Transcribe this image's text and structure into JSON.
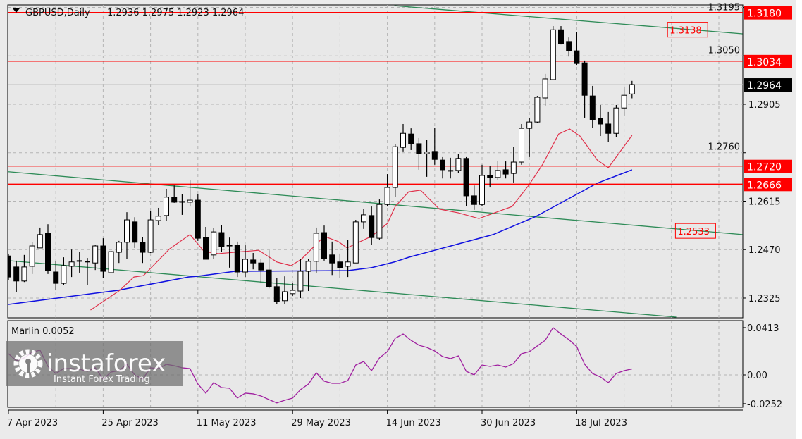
{
  "header": {
    "symbol_timeframe": "GBPUSD,Daily",
    "ohlc": "1.2936 1.2975 1.2923 1.2964"
  },
  "indicator": {
    "label": "Marlin 0.0052"
  },
  "logo": {
    "brand": "instaforex",
    "tagline": "Instant Forex Trading"
  },
  "colors": {
    "background": "#e8e8e8",
    "grid": "#b4b4b4",
    "level_line": "#ff0000",
    "trend_line": "#2e8b57",
    "ma_fast": "#e0304a",
    "ma_slow": "#1010e0",
    "marlin": "#a020a0",
    "bull_body": "#ffffff",
    "bear_body": "#000000",
    "current_price": "#000000"
  },
  "chart_data": {
    "type": "candlestick",
    "price_axis": {
      "ticks": [
        "1.3195",
        "1.3050",
        "1.2905",
        "1.2760",
        "1.2615",
        "1.2470",
        "1.2325"
      ],
      "range": [
        1.227,
        1.321
      ]
    },
    "date_labels": [
      {
        "index": 0,
        "text": "7 Apr 2023"
      },
      {
        "index": 12,
        "text": "25 Apr 2023"
      },
      {
        "index": 24,
        "text": "11 May 2023"
      },
      {
        "index": 36,
        "text": "29 May 2023"
      },
      {
        "index": 48,
        "text": "14 Jun 2023"
      },
      {
        "index": 60,
        "text": "30 Jun 2023"
      },
      {
        "index": 72,
        "text": "18 Jul 2023"
      }
    ],
    "candles": [
      [
        1.2451,
        1.2458,
        1.2378,
        1.2388
      ],
      [
        1.2418,
        1.2437,
        1.2342,
        1.2376
      ],
      [
        1.2376,
        1.2454,
        1.2373,
        1.2418
      ],
      [
        1.242,
        1.2492,
        1.2397,
        1.2481
      ],
      [
        1.2475,
        1.2536,
        1.2475,
        1.2515
      ],
      [
        1.2519,
        1.2546,
        1.2397,
        1.2407
      ],
      [
        1.2403,
        1.2437,
        1.2348,
        1.2369
      ],
      [
        1.2369,
        1.2447,
        1.2363,
        1.2422
      ],
      [
        1.242,
        1.247,
        1.2388,
        1.2433
      ],
      [
        1.2437,
        1.2464,
        1.2401,
        1.2435
      ],
      [
        1.2435,
        1.2445,
        1.2363,
        1.2433
      ],
      [
        1.243,
        1.2483,
        1.2409,
        1.2481
      ],
      [
        1.2481,
        1.2504,
        1.2384,
        1.2405
      ],
      [
        1.2401,
        1.2466,
        1.2401,
        1.2464
      ],
      [
        1.2462,
        1.2496,
        1.243,
        1.2492
      ],
      [
        1.2492,
        1.2582,
        1.2443,
        1.2559
      ],
      [
        1.2553,
        1.2567,
        1.2475,
        1.2492
      ],
      [
        1.2492,
        1.2508,
        1.243,
        1.2462
      ],
      [
        1.2462,
        1.2586,
        1.246,
        1.2559
      ],
      [
        1.2557,
        1.2595,
        1.2544,
        1.257
      ],
      [
        1.2572,
        1.2652,
        1.2557,
        1.2627
      ],
      [
        1.2627,
        1.2662,
        1.261,
        1.2612
      ],
      [
        1.2614,
        1.2637,
        1.2574,
        1.2614
      ],
      [
        1.2612,
        1.2677,
        1.2599,
        1.2618
      ],
      [
        1.2618,
        1.2637,
        1.2496,
        1.2504
      ],
      [
        1.2506,
        1.2538,
        1.2441,
        1.2441
      ],
      [
        1.2454,
        1.2534,
        1.2441,
        1.2523
      ],
      [
        1.2521,
        1.2544,
        1.2462,
        1.2479
      ],
      [
        1.2483,
        1.2506,
        1.2416,
        1.2481
      ],
      [
        1.2483,
        1.2494,
        1.2388,
        1.2403
      ],
      [
        1.2403,
        1.2483,
        1.2388,
        1.2441
      ],
      [
        1.2439,
        1.246,
        1.2411,
        1.243
      ],
      [
        1.243,
        1.2443,
        1.2369,
        1.2409
      ],
      [
        1.2409,
        1.2468,
        1.2354,
        1.2359
      ],
      [
        1.2359,
        1.2384,
        1.2306,
        1.2314
      ],
      [
        1.2317,
        1.239,
        1.2306,
        1.2344
      ],
      [
        1.2338,
        1.2369,
        1.2331,
        1.2348
      ],
      [
        1.2346,
        1.2443,
        1.2325,
        1.2405
      ],
      [
        1.2405,
        1.2443,
        1.2346,
        1.2435
      ],
      [
        1.2435,
        1.2536,
        1.2401,
        1.2519
      ],
      [
        1.2521,
        1.2542,
        1.2437,
        1.2443
      ],
      [
        1.2454,
        1.2494,
        1.2394,
        1.243
      ],
      [
        1.2433,
        1.2456,
        1.2386,
        1.2416
      ],
      [
        1.242,
        1.25,
        1.2388,
        1.2433
      ],
      [
        1.243,
        1.2559,
        1.243,
        1.2553
      ],
      [
        1.2553,
        1.2591,
        1.2532,
        1.2574
      ],
      [
        1.2572,
        1.2599,
        1.2485,
        1.2506
      ],
      [
        1.2504,
        1.262,
        1.25,
        1.2605
      ],
      [
        1.2605,
        1.2696,
        1.2599,
        1.2656
      ],
      [
        1.2656,
        1.2785,
        1.2627,
        1.2778
      ],
      [
        1.2776,
        1.2846,
        1.2764,
        1.2818
      ],
      [
        1.2816,
        1.2833,
        1.2768,
        1.2787
      ],
      [
        1.2787,
        1.2804,
        1.2709,
        1.2757
      ],
      [
        1.2757,
        1.2799,
        1.2688,
        1.2762
      ],
      [
        1.2764,
        1.2835,
        1.2724,
        1.274
      ],
      [
        1.2738,
        1.2747,
        1.2683,
        1.2709
      ],
      [
        1.2707,
        1.2745,
        1.2683,
        1.2707
      ],
      [
        1.2707,
        1.2757,
        1.27,
        1.2743
      ],
      [
        1.2743,
        1.2747,
        1.2601,
        1.2631
      ],
      [
        1.2631,
        1.2662,
        1.2589,
        1.2605
      ],
      [
        1.2605,
        1.2724,
        1.2601,
        1.2692
      ],
      [
        1.2692,
        1.2721,
        1.2656,
        1.2686
      ],
      [
        1.2686,
        1.2736,
        1.2679,
        1.2707
      ],
      [
        1.2709,
        1.2734,
        1.2683,
        1.2696
      ],
      [
        1.2698,
        1.2778,
        1.2671,
        1.2732
      ],
      [
        1.2732,
        1.2846,
        1.2724,
        1.2833
      ],
      [
        1.2833,
        1.2865,
        1.2747,
        1.2852
      ],
      [
        1.2852,
        1.293,
        1.285,
        1.2926
      ],
      [
        1.2924,
        1.2996,
        1.2899,
        1.2981
      ],
      [
        1.2979,
        1.3139,
        1.2979,
        1.3128
      ],
      [
        1.3128,
        1.3139,
        1.3084,
        1.3086
      ],
      [
        1.3093,
        1.3105,
        1.3048,
        1.3065
      ],
      [
        1.3065,
        1.3122,
        1.3023,
        1.3027
      ],
      [
        1.3029,
        1.3036,
        1.2865,
        1.2932
      ],
      [
        1.293,
        1.296,
        1.2835,
        1.2859
      ],
      [
        1.2863,
        1.2903,
        1.281,
        1.2846
      ],
      [
        1.2846,
        1.2882,
        1.2793,
        1.2818
      ],
      [
        1.2818,
        1.2903,
        1.2806,
        1.2894
      ],
      [
        1.2894,
        1.2958,
        1.2871,
        1.2932
      ],
      [
        1.2936,
        1.2975,
        1.2923,
        1.2964
      ]
    ],
    "ma_fast": [
      [
        10.4,
        1.2289
      ],
      [
        14.1,
        1.2348
      ],
      [
        15.9,
        1.2388
      ],
      [
        17.1,
        1.2392
      ],
      [
        20.4,
        1.2472
      ],
      [
        23.0,
        1.2515
      ],
      [
        24.8,
        1.2464
      ],
      [
        26.6,
        1.2458
      ],
      [
        31.7,
        1.2468
      ],
      [
        34.0,
        1.2433
      ],
      [
        35.8,
        1.2422
      ],
      [
        37.1,
        1.2441
      ],
      [
        40.0,
        1.251
      ],
      [
        41.8,
        1.2494
      ],
      [
        42.9,
        1.2475
      ],
      [
        46.0,
        1.251
      ],
      [
        48.0,
        1.2548
      ],
      [
        49.0,
        1.2599
      ],
      [
        50.7,
        1.2643
      ],
      [
        52.2,
        1.2648
      ],
      [
        54.6,
        1.2591
      ],
      [
        57.0,
        1.258
      ],
      [
        59.6,
        1.2563
      ],
      [
        63.8,
        1.2599
      ],
      [
        65.9,
        1.2662
      ],
      [
        67.7,
        1.2726
      ],
      [
        69.7,
        1.2816
      ],
      [
        71.1,
        1.2831
      ],
      [
        72.4,
        1.281
      ],
      [
        74.6,
        1.2738
      ],
      [
        76.0,
        1.2715
      ],
      [
        79.0,
        1.2812
      ]
    ],
    "ma_slow": [
      [
        0,
        1.2306
      ],
      [
        13.8,
        1.2348
      ],
      [
        22.8,
        1.2388
      ],
      [
        23.9,
        1.239
      ],
      [
        28.7,
        1.2405
      ],
      [
        41.8,
        1.2407
      ],
      [
        42.9,
        1.2407
      ],
      [
        46.0,
        1.2416
      ],
      [
        48.9,
        1.2433
      ],
      [
        50.7,
        1.2447
      ],
      [
        61.4,
        1.2515
      ],
      [
        66.8,
        1.2569
      ],
      [
        74.6,
        1.2669
      ],
      [
        79.0,
        1.2709
      ]
    ],
    "levels": [
      {
        "price": 1.318,
        "label": "1.3180"
      },
      {
        "price": 1.3034,
        "label": "1.3034"
      },
      {
        "price": 1.272,
        "label": "1.2720"
      },
      {
        "price": 1.2666,
        "label": "1.2666"
      }
    ],
    "current_price": {
      "price": 1.2964,
      "label": "1.2964"
    },
    "trend_lines": [
      {
        "from": [
          48.9,
          1.32
        ],
        "to": [
          93,
          1.3116
        ],
        "label": "1.3138",
        "label_index": 86
      },
      {
        "from": [
          0,
          1.2703
        ],
        "to": [
          93,
          1.2515
        ],
        "label": "1.2533",
        "label_index": 87
      },
      {
        "from": [
          0,
          1.2437
        ],
        "to": [
          84.6,
          1.2268
        ]
      }
    ],
    "marlin": {
      "ticks": [
        "0.0413",
        "0.00",
        "-0.0252"
      ],
      "values": [
        0.0185,
        0.0123,
        0.0148,
        0.0197,
        0.0216,
        0.0074,
        0.0012,
        0.0055,
        0.0055,
        0.0049,
        0.0031,
        0.0062,
        -0.0037,
        0.0025,
        0.0037,
        0.0092,
        0.0,
        -0.0037,
        0.0062,
        0.0055,
        0.0092,
        0.008,
        0.0062,
        0.0055,
        -0.008,
        -0.016,
        -0.0068,
        -0.0111,
        -0.0117,
        -0.0203,
        -0.016,
        -0.0166,
        -0.0185,
        -0.0216,
        -0.0245,
        -0.0222,
        -0.0203,
        -0.0129,
        -0.008,
        0.0018,
        -0.0055,
        -0.0074,
        -0.0074,
        -0.0049,
        0.0086,
        0.0117,
        0.0037,
        0.0148,
        0.0203,
        0.032,
        0.0357,
        0.0302,
        0.0259,
        0.024,
        0.0209,
        0.016,
        0.0142,
        0.0166,
        0.0031,
        0.0,
        0.0086,
        0.0074,
        0.0086,
        0.0068,
        0.0099,
        0.0185,
        0.0203,
        0.0253,
        0.0302,
        0.0413,
        0.0357,
        0.0308,
        0.0246,
        0.0092,
        0.0012,
        -0.0018,
        -0.0068,
        0.0012,
        0.0037,
        0.0052
      ]
    }
  }
}
